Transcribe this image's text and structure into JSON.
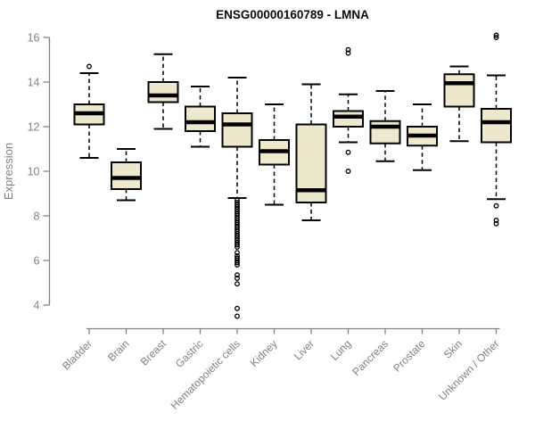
{
  "chart_data": {
    "type": "boxplot",
    "title": "ENSG00000160789 - LMNA",
    "ylabel": "Expression",
    "xlabel": "",
    "y_ticks": [
      4,
      6,
      8,
      10,
      12,
      14,
      16
    ],
    "ylim": [
      3.2,
      16.3
    ],
    "grid": false,
    "legend": "none",
    "categories": [
      "Bladder",
      "Brain",
      "Breast",
      "Gastric",
      "Hematopoietic cells",
      "Kidney",
      "Liver",
      "Lung",
      "Pancreas",
      "Prostate",
      "Skin",
      "Unknown / Other"
    ],
    "boxes": [
      {
        "category": "Bladder",
        "whisker_low": 10.6,
        "q1": 12.1,
        "median": 12.6,
        "q3": 13.0,
        "whisker_high": 14.4,
        "outliers": [
          14.7
        ]
      },
      {
        "category": "Brain",
        "whisker_low": 8.7,
        "q1": 9.2,
        "median": 9.7,
        "q3": 10.4,
        "whisker_high": 11.0,
        "outliers": []
      },
      {
        "category": "Breast",
        "whisker_low": 11.9,
        "q1": 13.1,
        "median": 13.4,
        "q3": 14.0,
        "whisker_high": 15.25,
        "outliers": []
      },
      {
        "category": "Gastric",
        "whisker_low": 11.1,
        "q1": 11.8,
        "median": 12.2,
        "q3": 12.9,
        "whisker_high": 13.8,
        "outliers": []
      },
      {
        "category": "Hematopoietic cells",
        "whisker_low": 8.8,
        "q1": 11.1,
        "median": 12.1,
        "q3": 12.6,
        "whisker_high": 14.2,
        "outliers": [
          8.7,
          8.6,
          8.5,
          8.4,
          8.3,
          8.2,
          8.1,
          8.0,
          7.9,
          7.8,
          7.7,
          7.6,
          7.5,
          7.4,
          7.3,
          7.2,
          7.1,
          7.0,
          6.9,
          6.8,
          6.7,
          6.6,
          6.35,
          6.2,
          6.1,
          6.0,
          5.9,
          5.8,
          5.35,
          5.2,
          4.95,
          3.85,
          3.5
        ]
      },
      {
        "category": "Kidney",
        "whisker_low": 8.5,
        "q1": 10.3,
        "median": 10.9,
        "q3": 11.4,
        "whisker_high": 13.0,
        "outliers": []
      },
      {
        "category": "Liver",
        "whisker_low": 7.8,
        "q1": 8.6,
        "median": 9.15,
        "q3": 12.1,
        "whisker_high": 13.9,
        "outliers": []
      },
      {
        "category": "Lung",
        "whisker_low": 11.3,
        "q1": 12.0,
        "median": 12.45,
        "q3": 12.7,
        "whisker_high": 13.45,
        "outliers": [
          15.45,
          15.3,
          10.85,
          10.0
        ]
      },
      {
        "category": "Pancreas",
        "whisker_low": 10.45,
        "q1": 11.25,
        "median": 12.0,
        "q3": 12.25,
        "whisker_high": 13.6,
        "outliers": []
      },
      {
        "category": "Prostate",
        "whisker_low": 10.05,
        "q1": 11.15,
        "median": 11.6,
        "q3": 12.0,
        "whisker_high": 13.0,
        "outliers": []
      },
      {
        "category": "Skin",
        "whisker_low": 11.35,
        "q1": 12.9,
        "median": 13.95,
        "q3": 14.35,
        "whisker_high": 14.7,
        "outliers": []
      },
      {
        "category": "Unknown / Other",
        "whisker_low": 8.75,
        "q1": 11.3,
        "median": 12.2,
        "q3": 12.8,
        "whisker_high": 14.3,
        "outliers": [
          16.1,
          16.0,
          8.45,
          7.8,
          7.65
        ]
      }
    ],
    "colors": {
      "box_fill": "#EEE8CD",
      "box_border": "#000000",
      "median": "#000000",
      "whisker": "#000000",
      "outlier": "#000000",
      "axis": "#828282",
      "tick_label": "#828282",
      "title": "#0a0a0a",
      "background": "#FFFFFF"
    }
  }
}
